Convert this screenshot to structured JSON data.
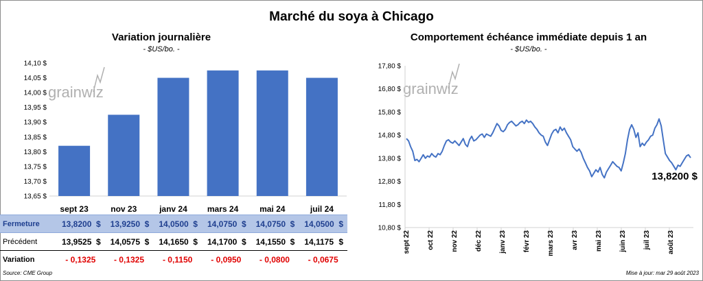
{
  "title": "Marché du soya à Chicago",
  "left": {
    "subtitle": "Variation  journalière",
    "unit": "- $US/bo. -"
  },
  "right": {
    "subtitle": "Comportement  échéance immédiate depuis 1 an",
    "unit": "- $US/bo. -",
    "last_label": "13,8200 $"
  },
  "watermark": "grainwiz",
  "table": {
    "currency": "$",
    "rows": [
      {
        "label": "Fermeture",
        "values": [
          "13,8200",
          "13,9250",
          "14,0500",
          "14,0750",
          "14,0750",
          "14,0500"
        ]
      },
      {
        "label": "Précédent",
        "values": [
          "13,9525",
          "14,0575",
          "14,1650",
          "14,1700",
          "14,1550",
          "14,1175"
        ]
      },
      {
        "label": "Variation",
        "values": [
          "- 0,1325",
          "- 0,1325",
          "- 0,1150",
          "- 0,0950",
          "- 0,0800",
          "- 0,0675"
        ]
      }
    ]
  },
  "footer": {
    "source": "Source: CME Group",
    "updated": "Mise à jour: mar 29 août 2023"
  },
  "colors": {
    "bar": "#4472c4",
    "line": "#4472c4",
    "table_highlight": "#b4c6e7",
    "negative": "#e00000"
  },
  "chart_data": [
    {
      "type": "bar",
      "title": "Variation  journalière",
      "subtitle": "- $US/bo. -",
      "categories": [
        "sept 23",
        "nov 23",
        "janv 24",
        "mars 24",
        "mai 24",
        "juil 24"
      ],
      "values": [
        13.82,
        13.925,
        14.05,
        14.075,
        14.075,
        14.05
      ],
      "ylim": [
        13.65,
        14.1
      ],
      "yticks": [
        "13,65 $",
        "13,70 $",
        "13,75 $",
        "13,80 $",
        "13,85 $",
        "13,90 $",
        "13,95 $",
        "14,00 $",
        "14,05 $",
        "14,10 $"
      ],
      "grid": false
    },
    {
      "type": "line",
      "title": "Comportement  échéance immédiate depuis 1 an",
      "subtitle": "- $US/bo. -",
      "x_start": "sept 22",
      "x_end": "août 23",
      "xticks": [
        "sept 22",
        "oct 22",
        "nov 22",
        "déc 22",
        "janv 23",
        "févr 23",
        "mars 23",
        "avr 23",
        "mai 23",
        "juin 23",
        "juil 23",
        "août 23"
      ],
      "yticks": [
        "10,80 $",
        "11,80 $",
        "12,80 $",
        "13,80 $",
        "14,80 $",
        "15,80 $",
        "16,80 $",
        "17,80 $"
      ],
      "ylim": [
        10.8,
        17.8
      ],
      "values": [
        14.65,
        14.55,
        14.3,
        14.1,
        13.7,
        13.75,
        13.65,
        13.8,
        13.95,
        13.8,
        13.9,
        13.85,
        14.0,
        13.9,
        13.85,
        14.0,
        13.95,
        14.1,
        14.35,
        14.55,
        14.6,
        14.5,
        14.45,
        14.55,
        14.45,
        14.35,
        14.5,
        14.65,
        14.4,
        14.3,
        14.6,
        14.75,
        14.55,
        14.6,
        14.7,
        14.8,
        14.85,
        14.7,
        14.85,
        14.8,
        14.75,
        14.9,
        15.1,
        15.3,
        15.2,
        15.0,
        14.95,
        15.05,
        15.25,
        15.35,
        15.4,
        15.3,
        15.2,
        15.25,
        15.35,
        15.4,
        15.3,
        15.45,
        15.35,
        15.4,
        15.3,
        15.15,
        15.05,
        14.9,
        14.8,
        14.75,
        14.5,
        14.35,
        14.6,
        14.85,
        15.0,
        15.05,
        14.9,
        15.15,
        15.0,
        15.1,
        14.9,
        14.75,
        14.6,
        14.3,
        14.2,
        14.1,
        14.2,
        14.05,
        13.8,
        13.6,
        13.4,
        13.25,
        13.0,
        13.15,
        13.3,
        13.2,
        13.4,
        13.1,
        12.95,
        13.2,
        13.35,
        13.5,
        13.65,
        13.55,
        13.45,
        13.4,
        13.25,
        13.6,
        14.0,
        14.6,
        15.05,
        15.25,
        15.05,
        14.7,
        14.9,
        14.3,
        14.45,
        14.35,
        14.5,
        14.6,
        14.75,
        14.8,
        15.1,
        15.25,
        15.5,
        15.2,
        14.6,
        14.0,
        13.85,
        13.7,
        13.6,
        13.45,
        13.3,
        13.5,
        13.45,
        13.6,
        13.75,
        13.9,
        13.95,
        13.82
      ],
      "last_value": 13.82,
      "grid": false
    }
  ]
}
